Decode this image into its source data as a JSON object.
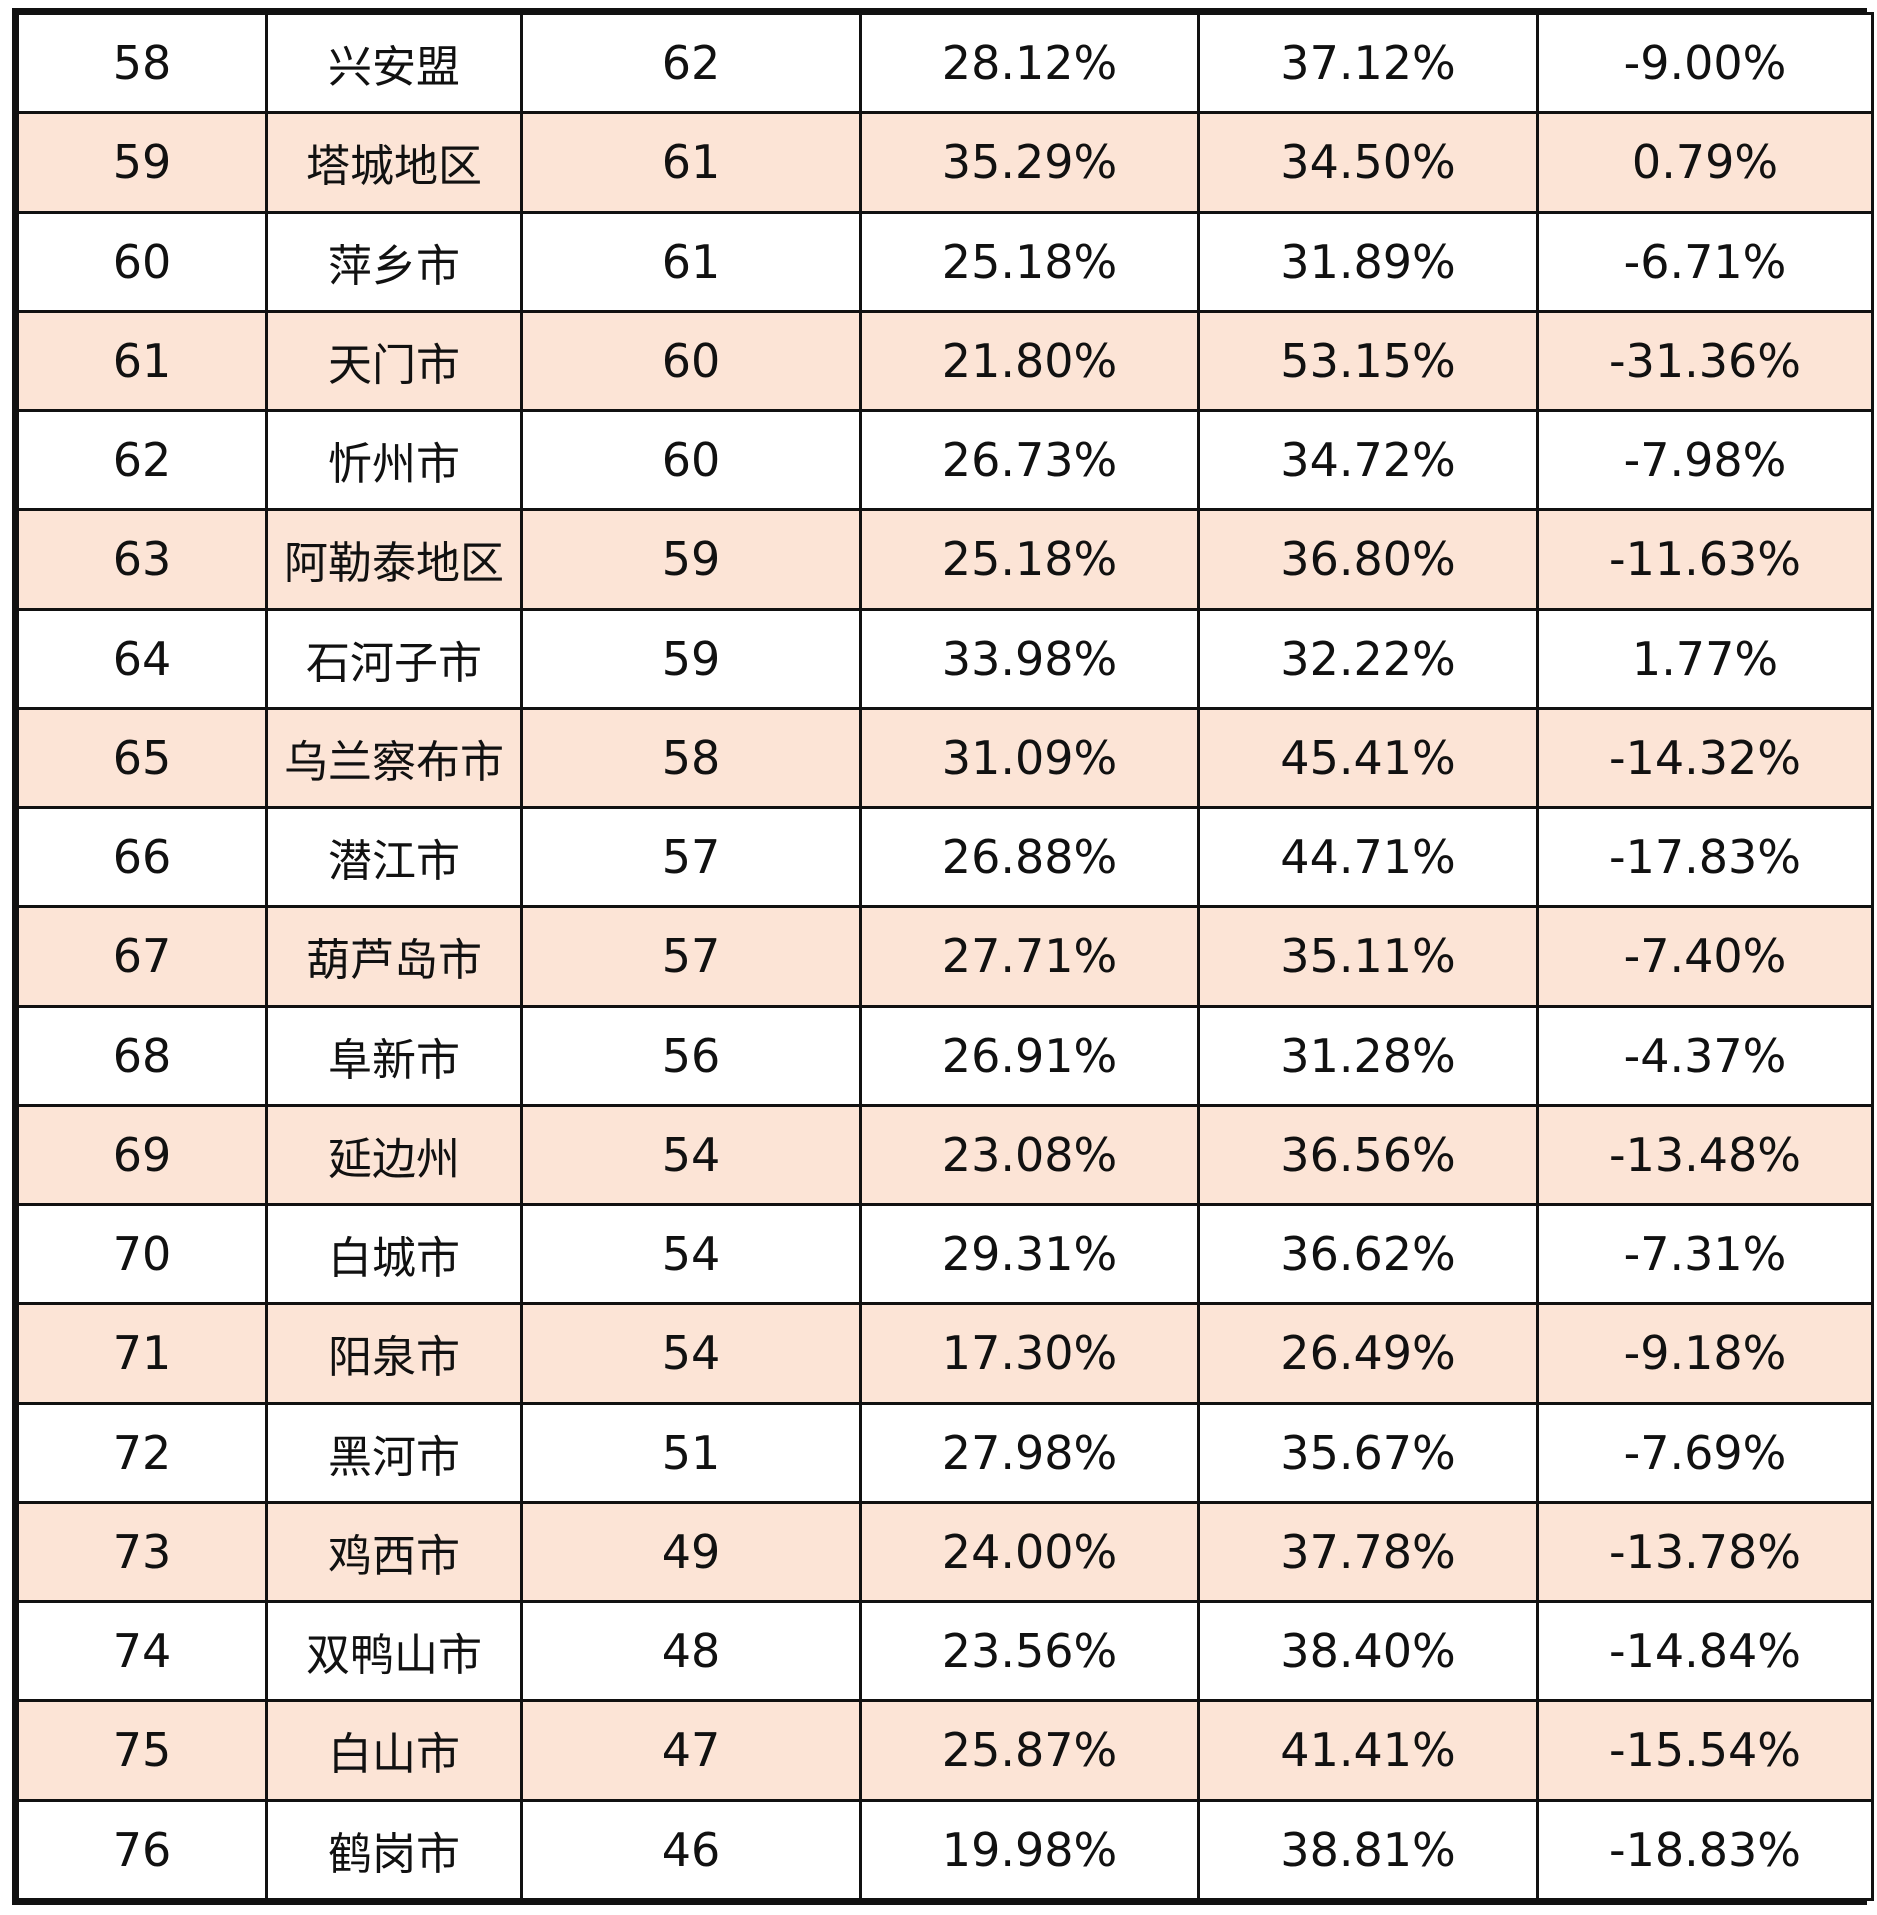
{
  "table": {
    "rows": [
      {
        "rank": "58",
        "city": "兴安盟",
        "count": "62",
        "pct_a": "28.12%",
        "pct_b": "37.12%",
        "diff": "-9.00%"
      },
      {
        "rank": "59",
        "city": "塔城地区",
        "count": "61",
        "pct_a": "35.29%",
        "pct_b": "34.50%",
        "diff": "0.79%"
      },
      {
        "rank": "60",
        "city": "萍乡市",
        "count": "61",
        "pct_a": "25.18%",
        "pct_b": "31.89%",
        "diff": "-6.71%"
      },
      {
        "rank": "61",
        "city": "天门市",
        "count": "60",
        "pct_a": "21.80%",
        "pct_b": "53.15%",
        "diff": "-31.36%"
      },
      {
        "rank": "62",
        "city": "忻州市",
        "count": "60",
        "pct_a": "26.73%",
        "pct_b": "34.72%",
        "diff": "-7.98%"
      },
      {
        "rank": "63",
        "city": "阿勒泰地区",
        "count": "59",
        "pct_a": "25.18%",
        "pct_b": "36.80%",
        "diff": "-11.63%"
      },
      {
        "rank": "64",
        "city": "石河子市",
        "count": "59",
        "pct_a": "33.98%",
        "pct_b": "32.22%",
        "diff": "1.77%"
      },
      {
        "rank": "65",
        "city": "乌兰察布市",
        "count": "58",
        "pct_a": "31.09%",
        "pct_b": "45.41%",
        "diff": "-14.32%"
      },
      {
        "rank": "66",
        "city": "潜江市",
        "count": "57",
        "pct_a": "26.88%",
        "pct_b": "44.71%",
        "diff": "-17.83%"
      },
      {
        "rank": "67",
        "city": "葫芦岛市",
        "count": "57",
        "pct_a": "27.71%",
        "pct_b": "35.11%",
        "diff": "-7.40%"
      },
      {
        "rank": "68",
        "city": "阜新市",
        "count": "56",
        "pct_a": "26.91%",
        "pct_b": "31.28%",
        "diff": "-4.37%"
      },
      {
        "rank": "69",
        "city": "延边州",
        "count": "54",
        "pct_a": "23.08%",
        "pct_b": "36.56%",
        "diff": "-13.48%"
      },
      {
        "rank": "70",
        "city": "白城市",
        "count": "54",
        "pct_a": "29.31%",
        "pct_b": "36.62%",
        "diff": "-7.31%"
      },
      {
        "rank": "71",
        "city": "阳泉市",
        "count": "54",
        "pct_a": "17.30%",
        "pct_b": "26.49%",
        "diff": "-9.18%"
      },
      {
        "rank": "72",
        "city": "黑河市",
        "count": "51",
        "pct_a": "27.98%",
        "pct_b": "35.67%",
        "diff": "-7.69%"
      },
      {
        "rank": "73",
        "city": "鸡西市",
        "count": "49",
        "pct_a": "24.00%",
        "pct_b": "37.78%",
        "diff": "-13.78%"
      },
      {
        "rank": "74",
        "city": "双鸭山市",
        "count": "48",
        "pct_a": "23.56%",
        "pct_b": "38.40%",
        "diff": "-14.84%"
      },
      {
        "rank": "75",
        "city": "白山市",
        "count": "47",
        "pct_a": "25.87%",
        "pct_b": "41.41%",
        "diff": "-15.54%"
      },
      {
        "rank": "76",
        "city": "鹤岗市",
        "count": "46",
        "pct_a": "19.98%",
        "pct_b": "38.81%",
        "diff": "-18.83%"
      }
    ]
  },
  "colors": {
    "alt_row": "#fce4d6",
    "plain_row": "#ffffff",
    "border": "#111111",
    "text": "#111111"
  }
}
